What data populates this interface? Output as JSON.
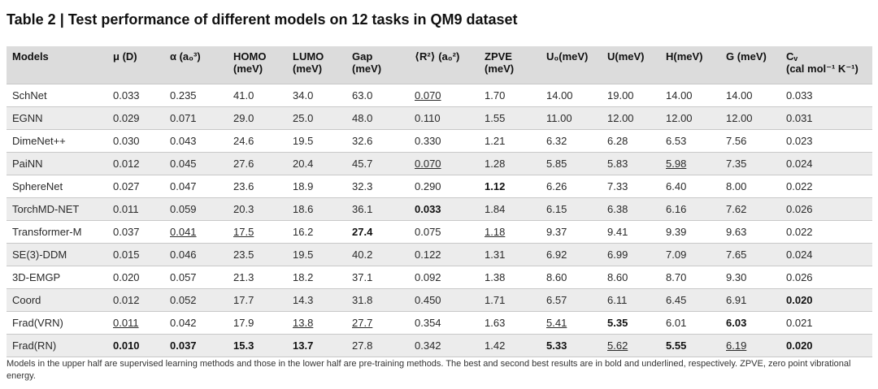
{
  "caption": "Table 2 | Test performance of different models on 12 tasks in QM9 dataset",
  "columns": [
    {
      "id": "model",
      "label_lines": [
        "Models"
      ]
    },
    {
      "id": "mu",
      "label_lines": [
        "μ (D)"
      ]
    },
    {
      "id": "alpha",
      "label_lines": [
        "α (a₀³)"
      ]
    },
    {
      "id": "homo",
      "label_lines": [
        "HOMO",
        "(meV)"
      ]
    },
    {
      "id": "lumo",
      "label_lines": [
        "LUMO",
        "(meV)"
      ]
    },
    {
      "id": "gap",
      "label_lines": [
        "Gap",
        "(meV)"
      ]
    },
    {
      "id": "r2",
      "label_lines": [
        "⟨R²⟩ (a₀²)"
      ]
    },
    {
      "id": "zpve",
      "label_lines": [
        "ZPVE",
        "(meV)"
      ]
    },
    {
      "id": "u0",
      "label_lines": [
        "U₀(meV)"
      ]
    },
    {
      "id": "u",
      "label_lines": [
        "U(meV)"
      ]
    },
    {
      "id": "h",
      "label_lines": [
        "H(meV)"
      ]
    },
    {
      "id": "g",
      "label_lines": [
        "G (meV)"
      ]
    },
    {
      "id": "cv",
      "label_lines": [
        "Cᵥ",
        "(cal mol⁻¹ K⁻¹)"
      ]
    }
  ],
  "rows": [
    {
      "cells": [
        {
          "v": "SchNet"
        },
        {
          "v": "0.033"
        },
        {
          "v": "0.235"
        },
        {
          "v": "41.0"
        },
        {
          "v": "34.0"
        },
        {
          "v": "63.0"
        },
        {
          "v": "0.070",
          "u": true
        },
        {
          "v": "1.70"
        },
        {
          "v": "14.00"
        },
        {
          "v": "19.00"
        },
        {
          "v": "14.00"
        },
        {
          "v": "14.00"
        },
        {
          "v": "0.033"
        }
      ]
    },
    {
      "cells": [
        {
          "v": "EGNN"
        },
        {
          "v": "0.029"
        },
        {
          "v": "0.071"
        },
        {
          "v": "29.0"
        },
        {
          "v": "25.0"
        },
        {
          "v": "48.0"
        },
        {
          "v": "0.110"
        },
        {
          "v": "1.55"
        },
        {
          "v": "11.00"
        },
        {
          "v": "12.00"
        },
        {
          "v": "12.00"
        },
        {
          "v": "12.00"
        },
        {
          "v": "0.031"
        }
      ]
    },
    {
      "cells": [
        {
          "v": "DimeNet++"
        },
        {
          "v": "0.030"
        },
        {
          "v": "0.043"
        },
        {
          "v": "24.6"
        },
        {
          "v": "19.5"
        },
        {
          "v": "32.6"
        },
        {
          "v": "0.330"
        },
        {
          "v": "1.21"
        },
        {
          "v": "6.32"
        },
        {
          "v": "6.28"
        },
        {
          "v": "6.53"
        },
        {
          "v": "7.56"
        },
        {
          "v": "0.023"
        }
      ]
    },
    {
      "cells": [
        {
          "v": "PaiNN"
        },
        {
          "v": "0.012"
        },
        {
          "v": "0.045"
        },
        {
          "v": "27.6"
        },
        {
          "v": "20.4"
        },
        {
          "v": "45.7"
        },
        {
          "v": "0.070",
          "u": true
        },
        {
          "v": "1.28"
        },
        {
          "v": "5.85"
        },
        {
          "v": "5.83"
        },
        {
          "v": "5.98",
          "u": true
        },
        {
          "v": "7.35"
        },
        {
          "v": "0.024"
        }
      ]
    },
    {
      "cells": [
        {
          "v": "SphereNet"
        },
        {
          "v": "0.027"
        },
        {
          "v": "0.047"
        },
        {
          "v": "23.6"
        },
        {
          "v": "18.9"
        },
        {
          "v": "32.3"
        },
        {
          "v": "0.290"
        },
        {
          "v": "1.12",
          "b": true
        },
        {
          "v": "6.26"
        },
        {
          "v": "7.33"
        },
        {
          "v": "6.40"
        },
        {
          "v": "8.00"
        },
        {
          "v": "0.022"
        }
      ]
    },
    {
      "cells": [
        {
          "v": "TorchMD-NET"
        },
        {
          "v": "0.011"
        },
        {
          "v": "0.059"
        },
        {
          "v": "20.3"
        },
        {
          "v": "18.6"
        },
        {
          "v": "36.1"
        },
        {
          "v": "0.033",
          "b": true
        },
        {
          "v": "1.84"
        },
        {
          "v": "6.15"
        },
        {
          "v": "6.38"
        },
        {
          "v": "6.16"
        },
        {
          "v": "7.62"
        },
        {
          "v": "0.026"
        }
      ]
    },
    {
      "cells": [
        {
          "v": "Transformer-M"
        },
        {
          "v": "0.037"
        },
        {
          "v": "0.041",
          "u": true
        },
        {
          "v": "17.5",
          "u": true
        },
        {
          "v": "16.2"
        },
        {
          "v": "27.4",
          "b": true
        },
        {
          "v": "0.075"
        },
        {
          "v": "1.18",
          "u": true
        },
        {
          "v": "9.37"
        },
        {
          "v": "9.41"
        },
        {
          "v": "9.39"
        },
        {
          "v": "9.63"
        },
        {
          "v": "0.022"
        }
      ]
    },
    {
      "cells": [
        {
          "v": "SE(3)-DDM"
        },
        {
          "v": "0.015"
        },
        {
          "v": "0.046"
        },
        {
          "v": "23.5"
        },
        {
          "v": "19.5"
        },
        {
          "v": "40.2"
        },
        {
          "v": "0.122"
        },
        {
          "v": "1.31"
        },
        {
          "v": "6.92"
        },
        {
          "v": "6.99"
        },
        {
          "v": "7.09"
        },
        {
          "v": "7.65"
        },
        {
          "v": "0.024"
        }
      ]
    },
    {
      "cells": [
        {
          "v": "3D-EMGP"
        },
        {
          "v": "0.020"
        },
        {
          "v": "0.057"
        },
        {
          "v": "21.3"
        },
        {
          "v": "18.2"
        },
        {
          "v": "37.1"
        },
        {
          "v": "0.092"
        },
        {
          "v": "1.38"
        },
        {
          "v": "8.60"
        },
        {
          "v": "8.60"
        },
        {
          "v": "8.70"
        },
        {
          "v": "9.30"
        },
        {
          "v": "0.026"
        }
      ]
    },
    {
      "cells": [
        {
          "v": "Coord"
        },
        {
          "v": "0.012"
        },
        {
          "v": "0.052"
        },
        {
          "v": "17.7"
        },
        {
          "v": "14.3"
        },
        {
          "v": "31.8"
        },
        {
          "v": "0.450"
        },
        {
          "v": "1.71"
        },
        {
          "v": "6.57"
        },
        {
          "v": "6.11"
        },
        {
          "v": "6.45"
        },
        {
          "v": "6.91"
        },
        {
          "v": "0.020",
          "b": true
        }
      ]
    },
    {
      "cells": [
        {
          "v": "Frad(VRN)"
        },
        {
          "v": "0.011",
          "u": true
        },
        {
          "v": "0.042"
        },
        {
          "v": "17.9"
        },
        {
          "v": "13.8",
          "u": true
        },
        {
          "v": "27.7",
          "u": true
        },
        {
          "v": "0.354"
        },
        {
          "v": "1.63"
        },
        {
          "v": "5.41",
          "u": true
        },
        {
          "v": "5.35",
          "b": true
        },
        {
          "v": "6.01"
        },
        {
          "v": "6.03",
          "b": true
        },
        {
          "v": "0.021"
        }
      ]
    },
    {
      "cells": [
        {
          "v": "Frad(RN)"
        },
        {
          "v": "0.010",
          "b": true
        },
        {
          "v": "0.037",
          "b": true
        },
        {
          "v": "15.3",
          "b": true
        },
        {
          "v": "13.7",
          "b": true
        },
        {
          "v": "27.8"
        },
        {
          "v": "0.342"
        },
        {
          "v": "1.42"
        },
        {
          "v": "5.33",
          "b": true
        },
        {
          "v": "5.62",
          "u": true
        },
        {
          "v": "5.55",
          "b": true
        },
        {
          "v": "6.19",
          "u": true
        },
        {
          "v": "0.020",
          "b": true
        }
      ]
    }
  ],
  "footnote": "Models in the upper half are supervised learning methods and those in the lower half are pre-training methods. The best and second best results are in bold and underlined, respectively. ZPVE, zero point vibrational energy."
}
